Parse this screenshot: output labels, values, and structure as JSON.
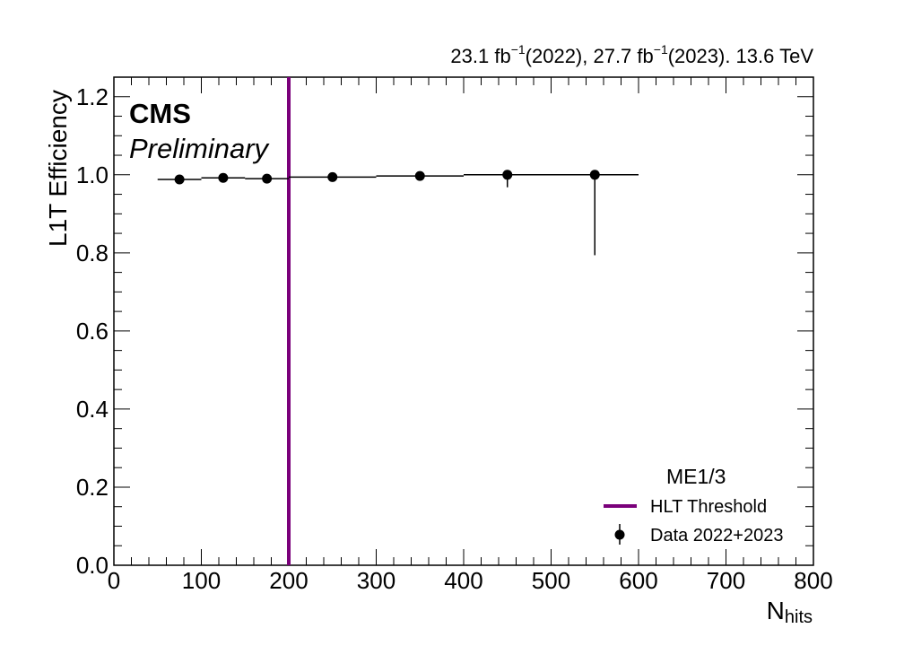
{
  "labels": {
    "cms": "CMS",
    "preliminary": "Preliminary",
    "lumi_a": "23.1 fb",
    "lumi_a_sup": "−1",
    "lumi_b": "(2022), 27.7 fb",
    "lumi_b_sup": "−1",
    "lumi_c": "(2023). 13.6 TeV",
    "ylabel": "L1T Efficiency",
    "xlabel_main": "N",
    "xlabel_sub": "hits",
    "legend_header": "ME1/3",
    "legend_threshold": "HLT Threshold",
    "legend_data": "Data 2022+2023"
  },
  "colors": {
    "threshold": "#7a007a",
    "data": "#000000"
  },
  "chart_data": {
    "type": "scatter",
    "title": "",
    "xlabel": "N_hits",
    "ylabel": "L1T Efficiency",
    "xlim": [
      0,
      800
    ],
    "ylim": [
      0.0,
      1.25
    ],
    "x_ticks": [
      "0",
      "100",
      "200",
      "300",
      "400",
      "500",
      "600",
      "700",
      "800"
    ],
    "y_ticks": [
      "0.0",
      "0.2",
      "0.4",
      "0.6",
      "0.8",
      "1.0",
      "1.2"
    ],
    "threshold": 200,
    "legend_position": "bottom-right",
    "series": [
      {
        "name": "Data 2022+2023",
        "points": [
          {
            "x": 75,
            "xlow": 50,
            "xhigh": 100,
            "y": 0.988,
            "yerr_low": 0.003,
            "yerr_high": 0.003
          },
          {
            "x": 125,
            "xlow": 100,
            "xhigh": 150,
            "y": 0.992,
            "yerr_low": 0.003,
            "yerr_high": 0.003
          },
          {
            "x": 175,
            "xlow": 150,
            "xhigh": 200,
            "y": 0.99,
            "yerr_low": 0.003,
            "yerr_high": 0.003
          },
          {
            "x": 250,
            "xlow": 200,
            "xhigh": 300,
            "y": 0.994,
            "yerr_low": 0.003,
            "yerr_high": 0.003
          },
          {
            "x": 350,
            "xlow": 300,
            "xhigh": 400,
            "y": 0.997,
            "yerr_low": 0.003,
            "yerr_high": 0.002
          },
          {
            "x": 450,
            "xlow": 400,
            "xhigh": 500,
            "y": 1.0,
            "yerr_low": 0.032,
            "yerr_high": 0.0
          },
          {
            "x": 550,
            "xlow": 500,
            "xhigh": 600,
            "y": 1.0,
            "yerr_low": 0.206,
            "yerr_high": 0.0
          }
        ]
      }
    ]
  }
}
